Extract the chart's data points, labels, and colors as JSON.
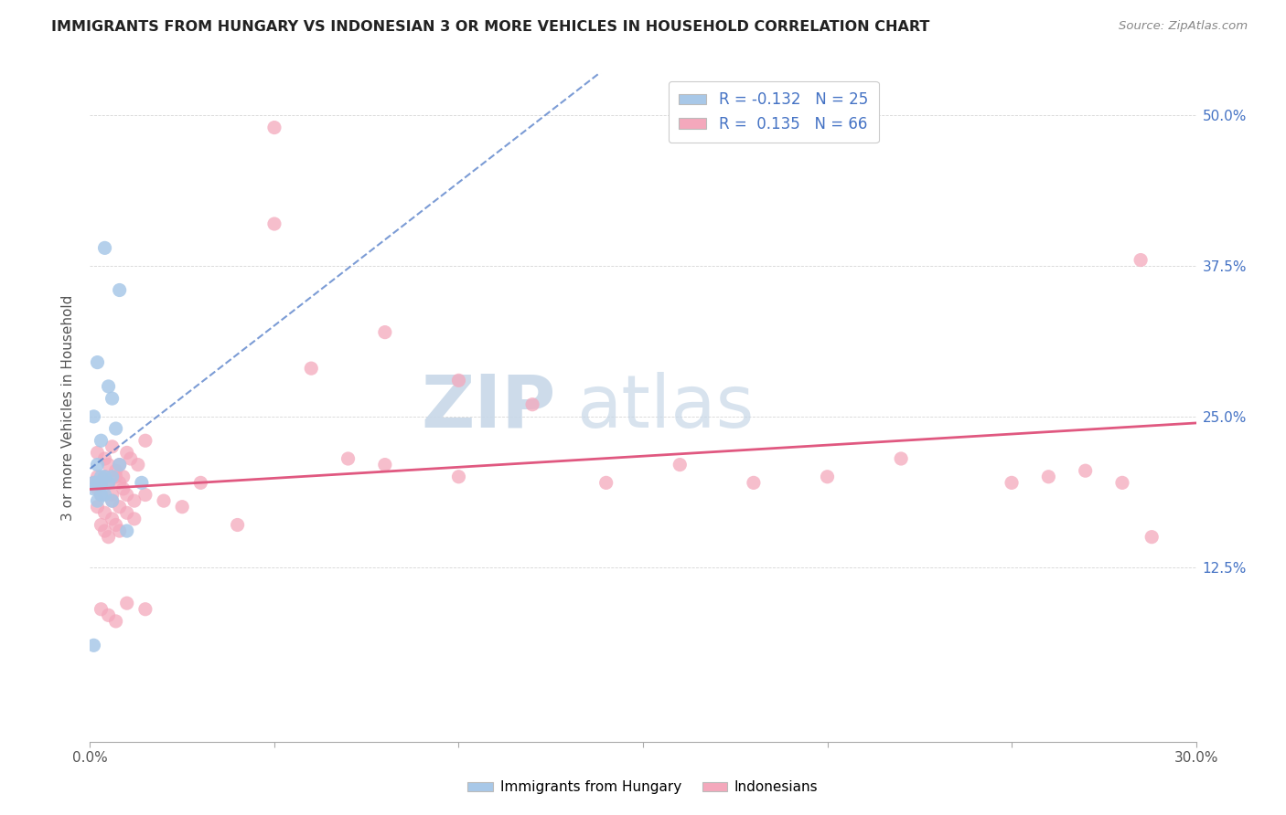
{
  "title": "IMMIGRANTS FROM HUNGARY VS INDONESIAN 3 OR MORE VEHICLES IN HOUSEHOLD CORRELATION CHART",
  "source": "Source: ZipAtlas.com",
  "ylabel": "3 or more Vehicles in Household",
  "ytick_vals": [
    0.5,
    0.375,
    0.25,
    0.125
  ],
  "ytick_labels": [
    "50.0%",
    "37.5%",
    "25.0%",
    "12.5%"
  ],
  "xlim": [
    0.0,
    0.3
  ],
  "ylim": [
    -0.02,
    0.535
  ],
  "legend1_R": "-0.132",
  "legend1_N": "25",
  "legend2_R": "0.135",
  "legend2_N": "66",
  "hungary_color": "#a8c8e8",
  "indonesia_color": "#f4a8bc",
  "hungary_line_color": "#4472c4",
  "indonesia_line_color": "#e05880",
  "hungary_points_x": [
    0.001,
    0.004,
    0.008,
    0.002,
    0.005,
    0.003,
    0.006,
    0.002,
    0.007,
    0.003,
    0.005,
    0.001,
    0.004,
    0.008,
    0.002,
    0.006,
    0.003,
    0.002,
    0.001,
    0.004,
    0.003,
    0.006,
    0.001,
    0.014,
    0.01
  ],
  "hungary_points_y": [
    0.25,
    0.39,
    0.355,
    0.295,
    0.275,
    0.23,
    0.265,
    0.21,
    0.24,
    0.2,
    0.195,
    0.195,
    0.185,
    0.21,
    0.195,
    0.2,
    0.195,
    0.18,
    0.19,
    0.2,
    0.185,
    0.18,
    0.06,
    0.195,
    0.155
  ],
  "indonesia_points_x": [
    0.001,
    0.002,
    0.003,
    0.004,
    0.005,
    0.006,
    0.007,
    0.008,
    0.009,
    0.01,
    0.003,
    0.004,
    0.005,
    0.006,
    0.007,
    0.008,
    0.01,
    0.012,
    0.002,
    0.004,
    0.006,
    0.008,
    0.01,
    0.015,
    0.002,
    0.004,
    0.006,
    0.008,
    0.012,
    0.015,
    0.002,
    0.003,
    0.005,
    0.007,
    0.009,
    0.011,
    0.013,
    0.003,
    0.005,
    0.007,
    0.01,
    0.015,
    0.02,
    0.025,
    0.03,
    0.04,
    0.05,
    0.06,
    0.07,
    0.08,
    0.1,
    0.12,
    0.14,
    0.16,
    0.18,
    0.05,
    0.08,
    0.1,
    0.2,
    0.22,
    0.25,
    0.26,
    0.27,
    0.28,
    0.285,
    0.288
  ],
  "indonesia_points_y": [
    0.195,
    0.19,
    0.185,
    0.2,
    0.195,
    0.185,
    0.2,
    0.195,
    0.19,
    0.185,
    0.16,
    0.155,
    0.15,
    0.165,
    0.16,
    0.155,
    0.17,
    0.165,
    0.22,
    0.215,
    0.225,
    0.21,
    0.22,
    0.23,
    0.175,
    0.17,
    0.18,
    0.175,
    0.18,
    0.185,
    0.2,
    0.195,
    0.21,
    0.205,
    0.2,
    0.215,
    0.21,
    0.09,
    0.085,
    0.08,
    0.095,
    0.09,
    0.18,
    0.175,
    0.195,
    0.16,
    0.49,
    0.29,
    0.215,
    0.21,
    0.2,
    0.26,
    0.195,
    0.21,
    0.195,
    0.41,
    0.32,
    0.28,
    0.2,
    0.215,
    0.195,
    0.2,
    0.205,
    0.195,
    0.38,
    0.15
  ]
}
